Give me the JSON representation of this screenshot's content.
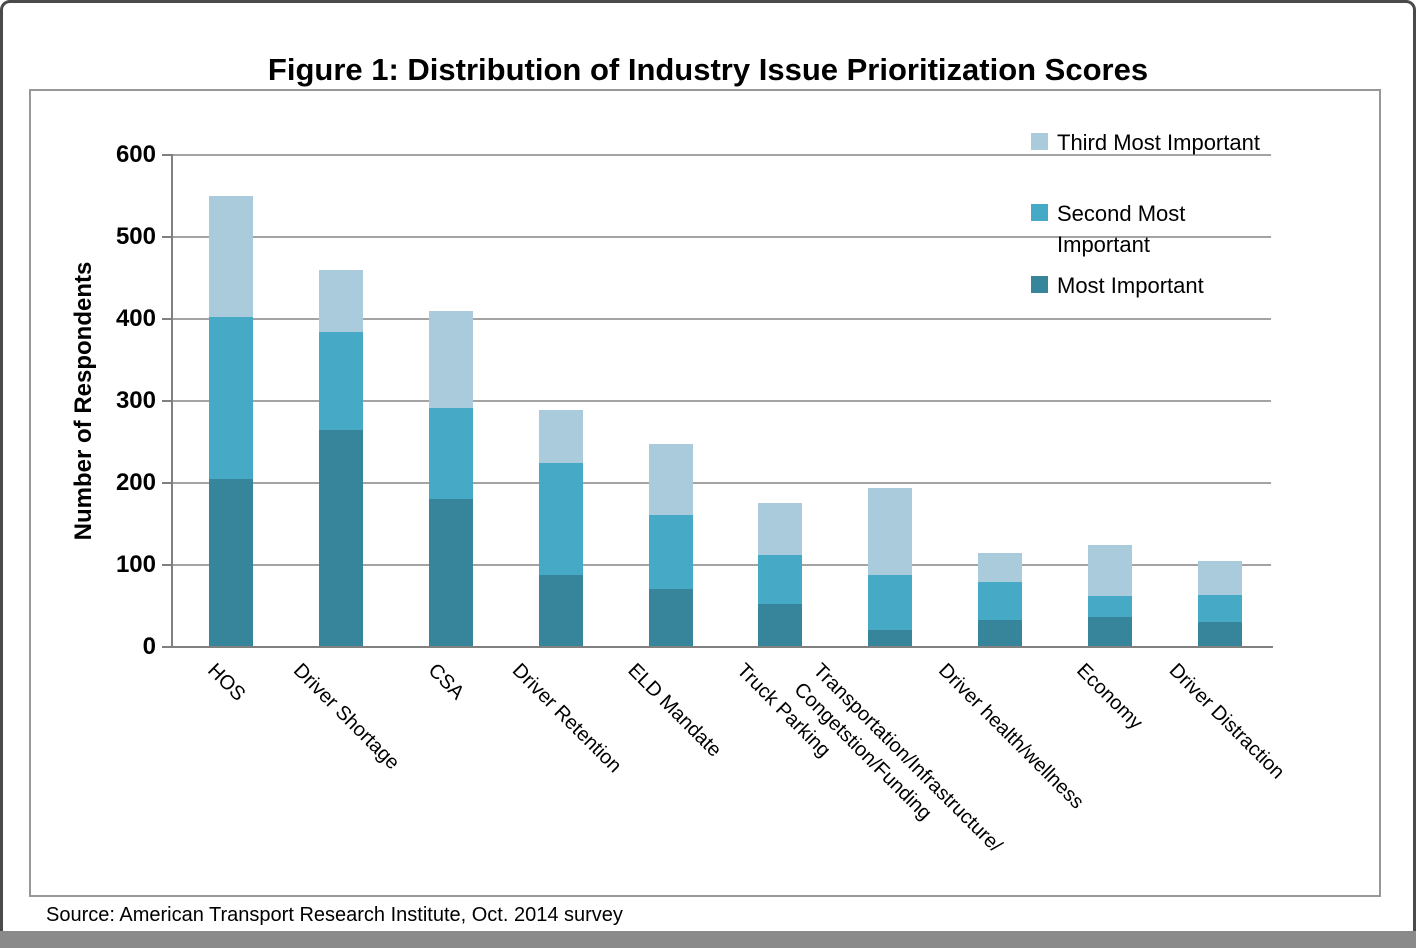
{
  "title": "Figure 1: Distribution of Industry Issue Prioritization Scores",
  "source": "Source: American Transport Research Institute, Oct. 2014 survey",
  "colors": {
    "most_important": "#37859B",
    "second_most_important": "#46A9C5",
    "third_most_important": "#A9CBDC",
    "gridline": "#A3A3A3",
    "axis": "#808080",
    "chart_border": "#989898",
    "frame_border": "#4A4A4A",
    "bottom_band": "#8A8A8A",
    "text": "#000000"
  },
  "chart_data": {
    "type": "bar",
    "stacked": true,
    "title": "Figure 1: Distribution of Industry Issue Prioritization Scores",
    "xlabel": "",
    "ylabel": "Number of Respondents",
    "ylim": [
      0,
      600
    ],
    "yticks": [
      0,
      100,
      200,
      300,
      400,
      500,
      600
    ],
    "grid": true,
    "legend_position": "top-right",
    "categories": [
      "HOS",
      "Driver Shortage",
      "CSA",
      "Driver Retention",
      "ELD Mandate",
      "Truck Parking",
      "Transportation/Infrastructure/\nCongetstion/Funding",
      "Driver health/wellness",
      "Economy",
      "Driver Distraction"
    ],
    "series": [
      {
        "name": "Most Important",
        "color": "#37859B",
        "values": [
          205,
          265,
          180,
          88,
          71,
          52,
          21,
          33,
          36,
          30
        ]
      },
      {
        "name": "Second Most Important",
        "color": "#46A9C5",
        "values": [
          197,
          119,
          111,
          136,
          90,
          60,
          67,
          46,
          26,
          33
        ]
      },
      {
        "name": "Third Most Important",
        "color": "#A9CBDC",
        "values": [
          148,
          76,
          119,
          65,
          86,
          64,
          106,
          36,
          63,
          42
        ]
      }
    ],
    "totals": [
      550,
      460,
      410,
      289,
      247,
      176,
      194,
      115,
      125,
      105
    ],
    "legend": [
      {
        "label": "Third Most Important",
        "color": "#A9CBDC"
      },
      {
        "label": "Second Most\nImportant",
        "color": "#46A9C5"
      },
      {
        "label": "Most Important",
        "color": "#37859B"
      }
    ]
  }
}
